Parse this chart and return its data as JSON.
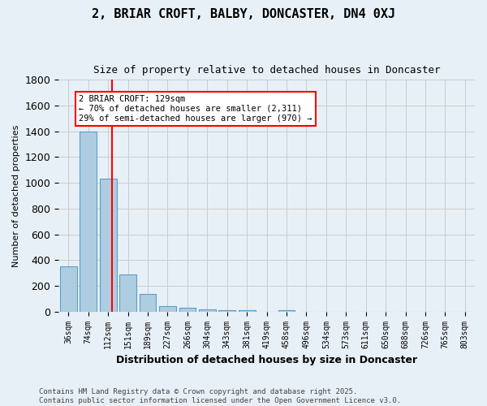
{
  "title_line1": "2, BRIAR CROFT, BALBY, DONCASTER, DN4 0XJ",
  "title_line2": "Size of property relative to detached houses in Doncaster",
  "xlabel": "Distribution of detached houses by size in Doncaster",
  "ylabel": "Number of detached properties",
  "bar_values": [
    350,
    1400,
    1030,
    290,
    135,
    42,
    30,
    20,
    12,
    10,
    0,
    10,
    0,
    0,
    0,
    0,
    0,
    0,
    0,
    0,
    0
  ],
  "bar_labels": [
    "36sqm",
    "74sqm",
    "112sqm",
    "151sqm",
    "189sqm",
    "227sqm",
    "266sqm",
    "304sqm",
    "343sqm",
    "381sqm",
    "419sqm",
    "458sqm",
    "496sqm",
    "534sqm",
    "573sqm",
    "611sqm",
    "650sqm",
    "688sqm",
    "726sqm",
    "765sqm",
    "803sqm"
  ],
  "bar_color": "#aecde1",
  "bar_edge_color": "#5b9ec9",
  "grid_color": "#cccccc",
  "background_color": "#e8f0f7",
  "ylim": [
    0,
    1800
  ],
  "yticks": [
    0,
    200,
    400,
    600,
    800,
    1000,
    1200,
    1400,
    1600,
    1800
  ],
  "red_line_x": 2.18,
  "annotation_text": "2 BRIAR CROFT: 129sqm\n← 70% of detached houses are smaller (2,311)\n29% of semi-detached houses are larger (970) →",
  "footer_line1": "Contains HM Land Registry data © Crown copyright and database right 2025.",
  "footer_line2": "Contains public sector information licensed under the Open Government Licence v3.0."
}
